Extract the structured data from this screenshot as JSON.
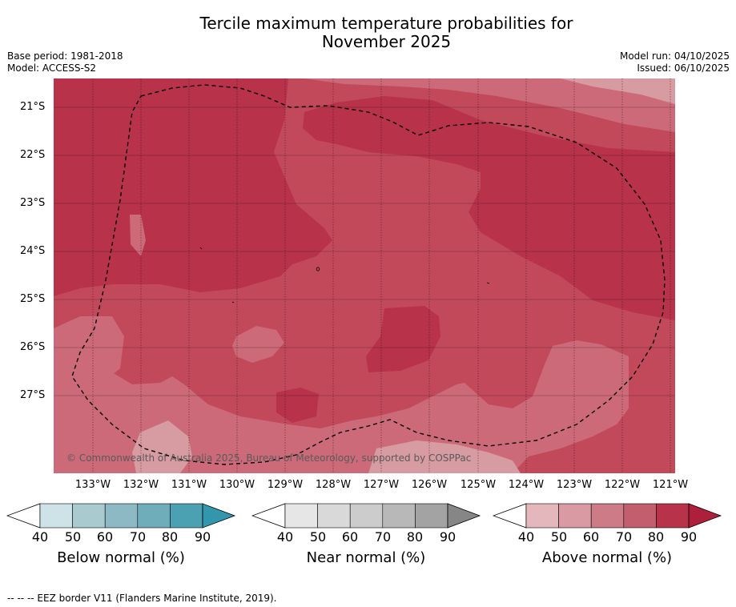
{
  "header": {
    "title_line1": "Tercile maximum temperature probabilities for",
    "title_line2": "November 2025",
    "base_period": "Base period: 1981-2018",
    "model": "Model: ACCESS-S2",
    "model_run": "Model run: 04/10/2025",
    "issued": "Issued: 06/10/2025"
  },
  "map": {
    "latitude_labels": [
      "21°S",
      "22°S",
      "23°S",
      "24°S",
      "25°S",
      "26°S",
      "27°S"
    ],
    "longitude_labels": [
      "133°W",
      "132°W",
      "131°W",
      "130°W",
      "129°W",
      "128°W",
      "127°W",
      "126°W",
      "125°W",
      "124°W",
      "123°W",
      "122°W",
      "121°W"
    ],
    "copyright": "© Commonwealth of Australia 2025, Bureau of Meteorology, supported by COSPPac",
    "colors": {
      "level_60_70": "#cd6a79",
      "level_70_80": "#c1495a",
      "level_80_90": "#b83249",
      "level_50_60": "#d79ba2"
    }
  },
  "colorbars": [
    {
      "label": "Below normal (%)",
      "ticks": [
        "40",
        "50",
        "60",
        "70",
        "80",
        "90"
      ],
      "colors": [
        "#cde3e8",
        "#a9cace",
        "#8cb9c3",
        "#6fadbb",
        "#4ba1b2",
        "#3297ad"
      ]
    },
    {
      "label": "Near normal (%)",
      "ticks": [
        "40",
        "50",
        "60",
        "70",
        "80",
        "90"
      ],
      "colors": [
        "#e6e6e6",
        "#d9d9d9",
        "#cccccc",
        "#b8b8b8",
        "#a3a3a3",
        "#868686"
      ]
    },
    {
      "label": "Above normal (%)",
      "ticks": [
        "40",
        "50",
        "60",
        "70",
        "80",
        "90"
      ],
      "colors": [
        "#e4b7bd",
        "#d99aa3",
        "#cd7b87",
        "#c35e6e",
        "#b83249",
        "#ad1f3b"
      ]
    }
  ],
  "footnote": "--  --  -- EEZ border V11 (Flanders Marine Institute, 2019)."
}
